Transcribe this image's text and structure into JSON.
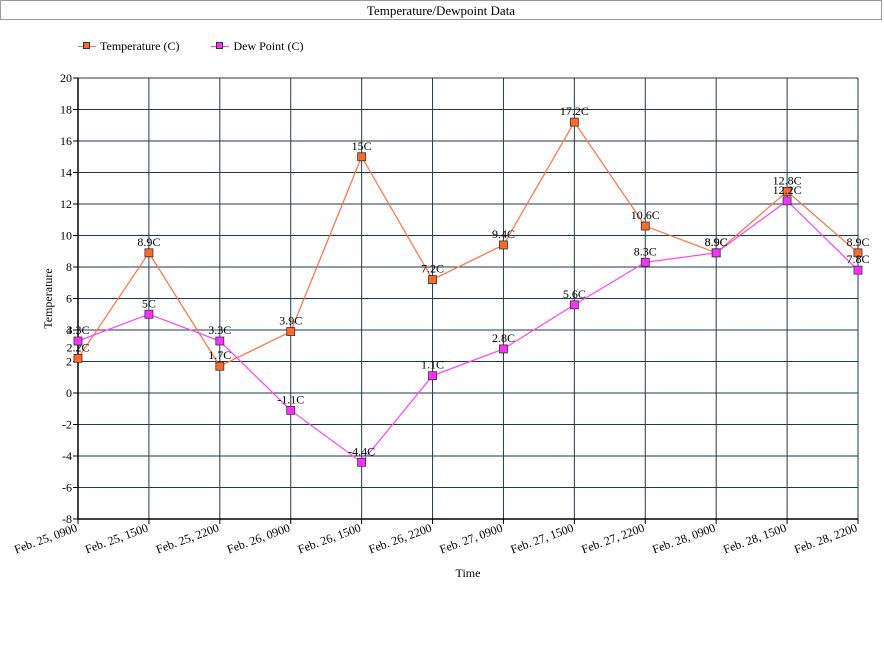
{
  "chart_data": {
    "type": "line",
    "title": "Temperature/Dewpoint Data",
    "xlabel": "Time",
    "ylabel": "Temperature",
    "ylim": [
      -8,
      20
    ],
    "ytick_step": 2,
    "grid": true,
    "legend_position": "top-left",
    "categories": [
      "Feb. 25, 0900",
      "Feb. 25, 1500",
      "Feb. 25, 2200",
      "Feb. 26, 0900",
      "Feb. 26, 1500",
      "Feb. 26, 2200",
      "Feb. 27, 0900",
      "Feb. 27, 1500",
      "Feb. 27, 2200",
      "Feb. 28, 0900",
      "Feb. 28, 1500",
      "Feb. 28, 2200"
    ],
    "series": [
      {
        "name": "Temperature (C)",
        "color": "#ff7040",
        "marker_color": "#ff6a2a",
        "values": [
          2.2,
          8.9,
          1.7,
          3.9,
          15,
          7.2,
          9.4,
          17.2,
          10.6,
          8.9,
          12.8,
          8.9
        ],
        "labels": [
          "2.2C",
          "8.9C",
          "1.7C",
          "3.9C",
          "15C",
          "7.2C",
          "9.4C",
          "17.2C",
          "10.6C",
          "8.9C",
          "12.8C",
          "8.9C"
        ]
      },
      {
        "name": "Dew Point (C)",
        "color": "#ff40ff",
        "marker_color": "#ff30ff",
        "values": [
          3.3,
          5,
          3.3,
          -1.1,
          -4.4,
          1.1,
          2.8,
          5.6,
          8.3,
          8.9,
          12.2,
          7.8
        ],
        "labels": [
          "3.3C",
          "5C",
          "3.3C",
          "-1.1C",
          "-4.4C",
          "1.1C",
          "2.8C",
          "5.6C",
          "8.3C",
          "8.9C",
          "12.2C",
          "7.8C"
        ]
      }
    ]
  }
}
